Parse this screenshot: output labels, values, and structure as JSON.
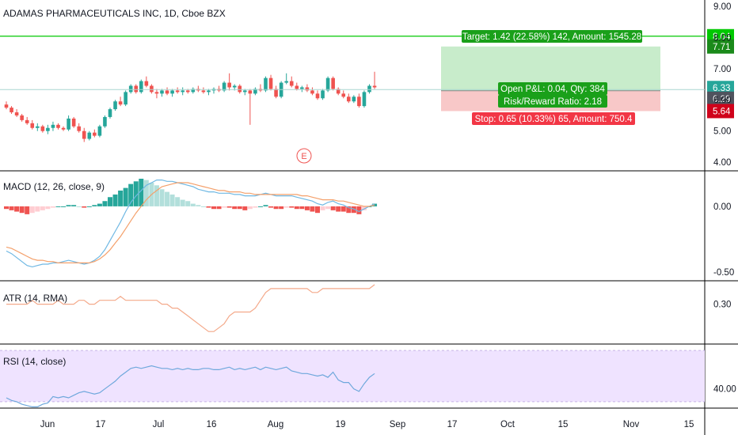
{
  "chart_title": "ADAMAS PHARMACEUTICALS INC, 1D, Cboe BZX",
  "colors": {
    "up": "#26a69a",
    "down": "#ef5350",
    "target": "#00c800",
    "target_zone": "#c8eccb",
    "stop_zone": "#f8c8c8",
    "stop_label": "#f23645",
    "entry_line": "#a9d6d0",
    "macd": "#6fb8e3",
    "signal": "#f4a06b",
    "atr": "#f4a98a",
    "rsi": "#6fa8dc",
    "rsi_band": "#efe3ff",
    "grid_sep": "#000000"
  },
  "trade": {
    "target_label": "Target: 1.42 (22.58%) 142, Amount: 1545.28",
    "pnl_label": "Open P&L: 0.04, Qty: 384",
    "rr_label": "Risk/Reward Ratio: 2.18",
    "stop_label": "Stop: 0.65 (10.33%) 65, Amount: 750.4",
    "target_price": 7.71,
    "entry_price": 6.29,
    "stop_price": 5.64,
    "last_price": 6.33,
    "alert_line_price": 8.04,
    "price_tags": [
      "8.04",
      "7.71",
      "6.33",
      "6.29",
      "5.64"
    ]
  },
  "earnings_marker": "E",
  "chart_data": [
    {
      "type": "candlestick",
      "pane": "price",
      "title": "ADAMAS PHARMACEUTICALS INC, 1D, Cboe BZX",
      "y_ticks": [
        "9.00",
        "8.00",
        "7.00",
        "6.00",
        "5.00",
        "4.00"
      ],
      "ylim": [
        3.75,
        9.2
      ],
      "x_ticks": [
        "Jun",
        "17",
        "Jul",
        "16",
        "Aug",
        "19",
        "Sep",
        "17",
        "Oct",
        "15",
        "Nov",
        "15"
      ],
      "dates_start": "2019-05-23",
      "ohlc": [
        [
          5.85,
          5.95,
          5.7,
          5.75
        ],
        [
          5.75,
          5.8,
          5.55,
          5.6
        ],
        [
          5.6,
          5.7,
          5.45,
          5.5
        ],
        [
          5.5,
          5.55,
          5.3,
          5.35
        ],
        [
          5.35,
          5.45,
          5.2,
          5.25
        ],
        [
          5.25,
          5.35,
          5.05,
          5.1
        ],
        [
          5.1,
          5.25,
          5.0,
          5.15
        ],
        [
          5.15,
          5.2,
          4.95,
          5.0
        ],
        [
          5.0,
          5.2,
          4.9,
          5.1
        ],
        [
          5.1,
          5.3,
          5.0,
          5.2
        ],
        [
          5.2,
          5.25,
          5.05,
          5.1
        ],
        [
          5.1,
          5.15,
          5.0,
          5.05
        ],
        [
          5.05,
          5.5,
          5.0,
          5.4
        ],
        [
          5.4,
          5.45,
          5.1,
          5.15
        ],
        [
          5.15,
          5.25,
          4.95,
          5.0
        ],
        [
          5.0,
          5.1,
          4.65,
          4.75
        ],
        [
          4.75,
          5.0,
          4.7,
          4.95
        ],
        [
          4.95,
          5.05,
          4.8,
          4.85
        ],
        [
          4.85,
          5.2,
          4.8,
          5.15
        ],
        [
          5.15,
          5.5,
          5.1,
          5.45
        ],
        [
          5.45,
          5.75,
          5.4,
          5.7
        ],
        [
          5.7,
          6.0,
          5.65,
          5.95
        ],
        [
          5.95,
          6.1,
          5.8,
          5.85
        ],
        [
          5.85,
          6.3,
          5.8,
          6.25
        ],
        [
          6.25,
          6.5,
          6.2,
          6.45
        ],
        [
          6.45,
          6.5,
          6.2,
          6.25
        ],
        [
          6.25,
          6.65,
          6.2,
          6.6
        ],
        [
          6.6,
          6.75,
          6.4,
          6.45
        ],
        [
          6.45,
          6.5,
          6.2,
          6.25
        ],
        [
          6.25,
          6.35,
          6.05,
          6.2
        ],
        [
          6.2,
          6.35,
          6.1,
          6.3
        ],
        [
          6.3,
          6.4,
          6.15,
          6.2
        ],
        [
          6.2,
          6.35,
          6.1,
          6.3
        ],
        [
          6.3,
          6.4,
          6.2,
          6.25
        ],
        [
          6.25,
          6.4,
          6.15,
          6.3
        ],
        [
          6.3,
          6.35,
          6.2,
          6.25
        ],
        [
          6.25,
          6.4,
          6.2,
          6.35
        ],
        [
          6.35,
          6.45,
          6.25,
          6.3
        ],
        [
          6.3,
          6.4,
          6.2,
          6.25
        ],
        [
          6.25,
          6.35,
          6.15,
          6.3
        ],
        [
          6.3,
          6.4,
          6.2,
          6.35
        ],
        [
          6.35,
          6.45,
          6.25,
          6.3
        ],
        [
          6.3,
          6.6,
          6.25,
          6.55
        ],
        [
          6.55,
          6.85,
          6.3,
          6.4
        ],
        [
          6.4,
          6.5,
          6.3,
          6.45
        ],
        [
          6.45,
          6.5,
          6.2,
          6.25
        ],
        [
          6.25,
          6.35,
          6.15,
          6.3
        ],
        [
          6.3,
          6.35,
          5.2,
          6.2
        ],
        [
          6.2,
          6.4,
          6.15,
          6.35
        ],
        [
          6.35,
          6.5,
          6.25,
          6.3
        ],
        [
          6.3,
          6.75,
          6.25,
          6.7
        ],
        [
          6.7,
          6.8,
          6.3,
          6.35
        ],
        [
          6.35,
          6.45,
          6.05,
          6.1
        ],
        [
          6.1,
          6.6,
          6.05,
          6.55
        ],
        [
          6.55,
          6.85,
          6.5,
          6.6
        ],
        [
          6.6,
          6.75,
          6.4,
          6.45
        ],
        [
          6.45,
          6.55,
          6.3,
          6.35
        ],
        [
          6.35,
          6.45,
          6.25,
          6.4
        ],
        [
          6.4,
          6.5,
          6.25,
          6.3
        ],
        [
          6.3,
          6.4,
          6.15,
          6.2
        ],
        [
          6.2,
          6.3,
          6.0,
          6.05
        ],
        [
          6.05,
          6.35,
          6.0,
          6.3
        ],
        [
          6.3,
          6.75,
          6.25,
          6.7
        ],
        [
          6.7,
          6.75,
          6.3,
          6.35
        ],
        [
          6.35,
          6.4,
          6.15,
          6.2
        ],
        [
          6.2,
          6.3,
          6.05,
          6.1
        ],
        [
          6.1,
          6.2,
          5.9,
          5.95
        ],
        [
          5.95,
          6.15,
          5.9,
          6.1
        ],
        [
          6.1,
          6.2,
          5.75,
          5.8
        ],
        [
          5.8,
          6.3,
          5.75,
          6.25
        ],
        [
          6.25,
          6.5,
          6.2,
          6.45
        ],
        [
          6.45,
          6.9,
          6.35,
          6.4
        ]
      ]
    },
    {
      "type": "histogram+line",
      "pane": "macd",
      "title": "MACD (12, 26, close, 9)",
      "y_ticks": [
        "0.00",
        "-0.50"
      ],
      "ylim": [
        -0.56,
        0.27
      ],
      "series": [
        {
          "name": "histogram",
          "values": [
            -0.02,
            -0.03,
            -0.04,
            -0.05,
            -0.06,
            -0.05,
            -0.04,
            -0.03,
            -0.02,
            -0.01,
            0.0,
            0.0,
            0.01,
            0.01,
            0.0,
            -0.01,
            0.0,
            0.01,
            0.02,
            0.04,
            0.07,
            0.09,
            0.12,
            0.14,
            0.17,
            0.19,
            0.21,
            0.2,
            0.18,
            0.16,
            0.13,
            0.11,
            0.09,
            0.07,
            0.05,
            0.04,
            0.02,
            0.01,
            0.0,
            -0.01,
            -0.02,
            -0.02,
            -0.01,
            -0.01,
            -0.02,
            -0.02,
            -0.03,
            -0.02,
            -0.01,
            0.0,
            0.01,
            -0.01,
            -0.02,
            -0.02,
            -0.01,
            -0.01,
            -0.02,
            -0.02,
            -0.03,
            -0.04,
            -0.05,
            -0.03,
            -0.02,
            -0.03,
            -0.04,
            -0.04,
            -0.05,
            -0.05,
            -0.06,
            -0.03,
            0.0,
            0.02
          ]
        },
        {
          "name": "macd",
          "values": [
            -0.34,
            -0.36,
            -0.39,
            -0.42,
            -0.45,
            -0.46,
            -0.45,
            -0.44,
            -0.44,
            -0.43,
            -0.43,
            -0.42,
            -0.41,
            -0.42,
            -0.43,
            -0.44,
            -0.43,
            -0.41,
            -0.38,
            -0.33,
            -0.26,
            -0.19,
            -0.12,
            -0.04,
            0.03,
            0.08,
            0.12,
            0.16,
            0.18,
            0.2,
            0.2,
            0.19,
            0.19,
            0.18,
            0.17,
            0.16,
            0.15,
            0.13,
            0.12,
            0.11,
            0.11,
            0.1,
            0.1,
            0.1,
            0.09,
            0.09,
            0.08,
            0.08,
            0.08,
            0.09,
            0.1,
            0.09,
            0.08,
            0.08,
            0.08,
            0.08,
            0.07,
            0.06,
            0.05,
            0.04,
            0.02,
            0.01,
            0.03,
            0.04,
            0.02,
            0.01,
            -0.01,
            -0.02,
            -0.04,
            -0.02,
            0.0,
            0.02
          ]
        },
        {
          "name": "signal",
          "values": [
            -0.31,
            -0.32,
            -0.34,
            -0.36,
            -0.38,
            -0.4,
            -0.41,
            -0.41,
            -0.42,
            -0.42,
            -0.43,
            -0.43,
            -0.43,
            -0.43,
            -0.43,
            -0.43,
            -0.43,
            -0.42,
            -0.4,
            -0.37,
            -0.33,
            -0.28,
            -0.23,
            -0.17,
            -0.11,
            -0.05,
            0.0,
            0.05,
            0.09,
            0.12,
            0.15,
            0.16,
            0.17,
            0.18,
            0.18,
            0.18,
            0.17,
            0.16,
            0.15,
            0.14,
            0.13,
            0.12,
            0.12,
            0.11,
            0.11,
            0.11,
            0.1,
            0.1,
            0.09,
            0.09,
            0.09,
            0.09,
            0.09,
            0.09,
            0.09,
            0.09,
            0.09,
            0.08,
            0.08,
            0.07,
            0.06,
            0.05,
            0.05,
            0.05,
            0.04,
            0.04,
            0.03,
            0.02,
            0.01,
            0.0,
            0.0,
            0.01
          ]
        }
      ]
    },
    {
      "type": "line",
      "pane": "atr",
      "title": "ATR (14, RMA)",
      "y_ticks": [
        "0.30"
      ],
      "ylim": [
        0.2,
        0.36
      ],
      "values": [
        0.3,
        0.3,
        0.3,
        0.3,
        0.3,
        0.31,
        0.3,
        0.3,
        0.3,
        0.3,
        0.31,
        0.3,
        0.3,
        0.3,
        0.31,
        0.31,
        0.3,
        0.3,
        0.31,
        0.31,
        0.31,
        0.31,
        0.32,
        0.31,
        0.31,
        0.31,
        0.31,
        0.31,
        0.31,
        0.31,
        0.3,
        0.3,
        0.29,
        0.29,
        0.28,
        0.27,
        0.26,
        0.25,
        0.24,
        0.23,
        0.23,
        0.24,
        0.25,
        0.27,
        0.28,
        0.28,
        0.28,
        0.28,
        0.29,
        0.31,
        0.33,
        0.34,
        0.34,
        0.34,
        0.34,
        0.34,
        0.34,
        0.34,
        0.34,
        0.33,
        0.33,
        0.34,
        0.34,
        0.34,
        0.34,
        0.34,
        0.34,
        0.34,
        0.34,
        0.34,
        0.34,
        0.35
      ]
    },
    {
      "type": "line",
      "pane": "rsi",
      "title": "RSI (14, close)",
      "y_ticks": [
        "40.00"
      ],
      "ylim": [
        25,
        75
      ],
      "band": [
        30,
        70
      ],
      "values": [
        33,
        31,
        30,
        28,
        27,
        26,
        26,
        28,
        29,
        34,
        33,
        34,
        33,
        35,
        37,
        38,
        37,
        36,
        37,
        40,
        43,
        46,
        50,
        53,
        56,
        57,
        56,
        57,
        58,
        57,
        56,
        56,
        55,
        56,
        55,
        56,
        55,
        55,
        56,
        56,
        55,
        55,
        56,
        57,
        55,
        56,
        55,
        56,
        57,
        55,
        57,
        56,
        55,
        56,
        57,
        54,
        53,
        52,
        52,
        51,
        50,
        51,
        49,
        53,
        47,
        45,
        45,
        40,
        38,
        44,
        49,
        52
      ]
    }
  ]
}
